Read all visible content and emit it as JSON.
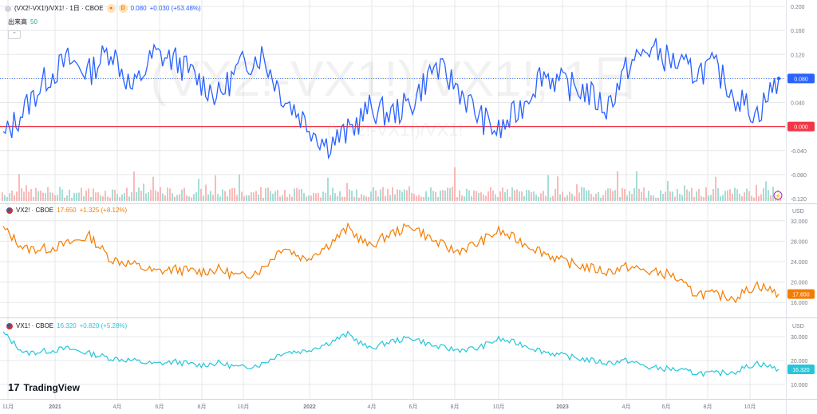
{
  "colors": {
    "spread": "#2962ff",
    "vx2": "#f57c00",
    "vx1": "#26c6da",
    "zero": "#f23645",
    "axis": "#787b86",
    "grid": "#e6e7ea",
    "vol_up": "#8fd6cb",
    "vol_down": "#f7a9a7"
  },
  "watermark": {
    "big": "(VX2!-VX1!)/VX1!, 1日",
    "small": "(VX2!-VX1!)/VX1!"
  },
  "pane1": {
    "symbol": "(VX2!-VX1!)/VX1! · 1日 · CBOE",
    "pill_label": "D",
    "value": "0.080",
    "change": "+0.030 (+53.48%)",
    "vol_label": "出来高",
    "vol_value": "50",
    "collapse_icon": "chevron-up-icon",
    "price_label": "0.080",
    "zero_label": "0.000",
    "ticks": [
      "0.200",
      "0.160",
      "0.120",
      "0.080",
      "0.040",
      "0.000",
      "-0.040",
      "-0.080",
      "-0.120"
    ]
  },
  "pane2": {
    "symbol": "VX2! · CBOE",
    "value": "17.650",
    "change": "+1.325 (+8.12%)",
    "currency": "USD",
    "price_label": "17.650",
    "ticks": [
      "32.000",
      "28.000",
      "24.000",
      "20.000",
      "16.000"
    ]
  },
  "pane3": {
    "symbol": "VX1! · CBOE",
    "value": "16.320",
    "change": "+0.820 (+5.28%)",
    "currency": "USD",
    "price_label": "16.320",
    "ticks": [
      "30.000",
      "20.000",
      "10.000"
    ]
  },
  "xaxis": {
    "labels": [
      "11月",
      "2021",
      "4月",
      "6月",
      "8月",
      "10月",
      "2022",
      "4月",
      "6月",
      "8月",
      "10月",
      "2023",
      "4月",
      "6月",
      "8月",
      "10月"
    ]
  },
  "brand": {
    "name": "TradingView",
    "mark": "17"
  },
  "chart_data": [
    {
      "type": "line",
      "title": "(VX2!-VX1!)/VX1! · 1日 · CBOE",
      "x": [
        "2020-11",
        "2020-12",
        "2021-01",
        "2021-02",
        "2021-03",
        "2021-04",
        "2021-05",
        "2021-06",
        "2021-07",
        "2021-08",
        "2021-09",
        "2021-10",
        "2021-11",
        "2021-12",
        "2022-01",
        "2022-02",
        "2022-03",
        "2022-04",
        "2022-05",
        "2022-06",
        "2022-07",
        "2022-08",
        "2022-09",
        "2022-10",
        "2022-11",
        "2022-12",
        "2023-01",
        "2023-02",
        "2023-03",
        "2023-04",
        "2023-05",
        "2023-06",
        "2023-07",
        "2023-08",
        "2023-09",
        "2023-10",
        "2023-11"
      ],
      "values": [
        -0.02,
        0.03,
        0.08,
        0.11,
        0.09,
        0.13,
        0.06,
        0.12,
        0.11,
        0.08,
        0.05,
        0.1,
        0.12,
        0.05,
        0.01,
        -0.03,
        -0.01,
        0.03,
        0.02,
        0.04,
        0.1,
        0.07,
        0.02,
        -0.01,
        0.03,
        0.09,
        0.07,
        0.06,
        0.03,
        0.1,
        0.13,
        0.11,
        0.09,
        0.1,
        0.05,
        0.02,
        0.08
      ],
      "ylim": [
        -0.12,
        0.2
      ],
      "ticks": [
        0.2,
        0.16,
        0.12,
        0.08,
        0.04,
        0.0,
        -0.04,
        -0.08,
        -0.12
      ],
      "reference_line": 0.0,
      "last": 0.08
    },
    {
      "type": "line",
      "title": "VX2! · CBOE",
      "x": [
        "2020-11",
        "2020-12",
        "2021-01",
        "2021-02",
        "2021-03",
        "2021-04",
        "2021-05",
        "2021-06",
        "2021-07",
        "2021-08",
        "2021-09",
        "2021-10",
        "2021-11",
        "2021-12",
        "2022-01",
        "2022-02",
        "2022-03",
        "2022-04",
        "2022-05",
        "2022-06",
        "2022-07",
        "2022-08",
        "2022-09",
        "2022-10",
        "2022-11",
        "2022-12",
        "2023-01",
        "2023-02",
        "2023-03",
        "2023-04",
        "2023-05",
        "2023-06",
        "2023-07",
        "2023-08",
        "2023-09",
        "2023-10",
        "2023-11"
      ],
      "values": [
        30.5,
        26.5,
        26.5,
        27.5,
        29.0,
        24.5,
        23.5,
        22.0,
        22.5,
        22.0,
        22.5,
        21.0,
        22.5,
        27.0,
        24.5,
        27.0,
        30.5,
        27.0,
        29.5,
        31.0,
        28.0,
        26.0,
        27.5,
        30.0,
        28.0,
        26.0,
        24.0,
        23.0,
        22.0,
        23.0,
        22.0,
        21.5,
        18.0,
        17.5,
        17.0,
        19.5,
        17.65
      ],
      "ylim": [
        14,
        34
      ],
      "ticks": [
        32,
        28,
        24,
        20,
        16
      ],
      "last": 17.65
    },
    {
      "type": "line",
      "title": "VX1! · CBOE",
      "x": [
        "2020-11",
        "2020-12",
        "2021-01",
        "2021-02",
        "2021-03",
        "2021-04",
        "2021-05",
        "2021-06",
        "2021-07",
        "2021-08",
        "2021-09",
        "2021-10",
        "2021-11",
        "2021-12",
        "2022-01",
        "2022-02",
        "2022-03",
        "2022-04",
        "2022-05",
        "2022-06",
        "2022-07",
        "2022-08",
        "2022-09",
        "2022-10",
        "2022-11",
        "2022-12",
        "2023-01",
        "2023-02",
        "2023-03",
        "2023-04",
        "2023-05",
        "2023-06",
        "2023-07",
        "2023-08",
        "2023-09",
        "2023-10",
        "2023-11"
      ],
      "values": [
        31.5,
        23.0,
        24.0,
        25.0,
        23.0,
        21.0,
        20.0,
        18.5,
        19.5,
        18.0,
        19.0,
        17.0,
        18.5,
        23.5,
        24.0,
        27.0,
        31.0,
        25.0,
        28.0,
        29.5,
        26.0,
        24.5,
        25.0,
        29.0,
        27.0,
        24.0,
        22.0,
        20.5,
        19.0,
        20.0,
        17.0,
        16.5,
        15.0,
        14.5,
        15.5,
        19.0,
        16.32
      ],
      "ylim": [
        6,
        35
      ],
      "ticks": [
        30,
        20,
        10
      ],
      "last": 16.32
    }
  ]
}
